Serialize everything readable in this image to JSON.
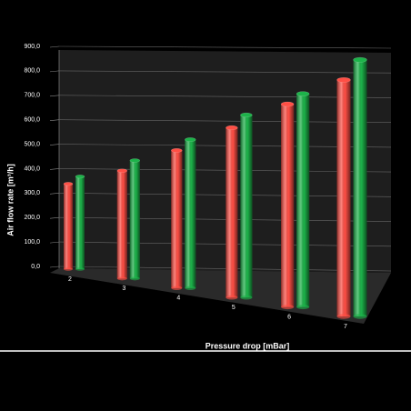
{
  "chart_data": {
    "type": "bar",
    "x_label": "Pressure drop [mBar]",
    "y_label": "Air flow rate [m³/h]",
    "categories": [
      "2",
      "3",
      "4",
      "5",
      "6",
      "7"
    ],
    "series": [
      {
        "color": "#ff4f45",
        "values": [
          350,
          420,
          510,
          600,
          685,
          765
        ]
      },
      {
        "color": "#1db34a",
        "values": [
          380,
          460,
          550,
          645,
          720,
          830
        ]
      }
    ],
    "ylim": [
      0,
      900
    ],
    "yticks": [
      {
        "value": 0,
        "label": "0,0"
      },
      {
        "value": 100,
        "label": "100,0"
      },
      {
        "value": 200,
        "label": "200,0"
      },
      {
        "value": 300,
        "label": "300,0"
      },
      {
        "value": 400,
        "label": "400,0"
      },
      {
        "value": 500,
        "label": "500,0"
      },
      {
        "value": 600,
        "label": "600,0"
      },
      {
        "value": 700,
        "label": "700,0"
      },
      {
        "value": 800,
        "label": "800,0"
      },
      {
        "value": 900,
        "label": "900,0"
      }
    ],
    "grid": true
  }
}
